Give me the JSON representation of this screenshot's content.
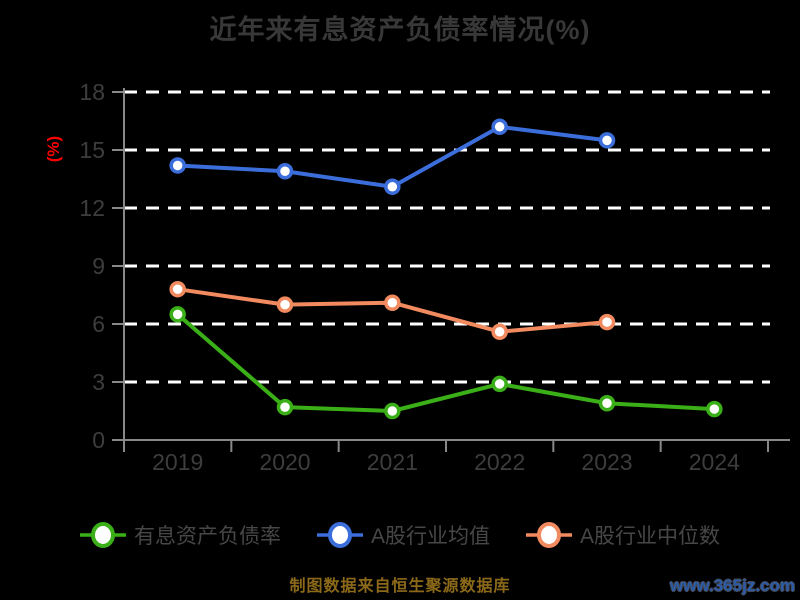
{
  "title": "近年来有息资产负债率情况(%)",
  "chart_data": {
    "type": "line",
    "categories": [
      "2019",
      "2020",
      "2021",
      "2022",
      "2023",
      "2024"
    ],
    "series": [
      {
        "name": "有息资产负债率",
        "color": "#3aaf17",
        "values": [
          6.5,
          1.7,
          1.5,
          2.9,
          1.9,
          1.6
        ]
      },
      {
        "name": "A股行业均值",
        "color": "#3c6edb",
        "values": [
          14.2,
          13.9,
          13.1,
          16.2,
          15.5,
          null
        ]
      },
      {
        "name": "A股行业中位数",
        "color": "#f18a5f",
        "values": [
          7.8,
          7.0,
          7.1,
          5.6,
          6.1,
          null
        ]
      }
    ],
    "ylabel": "(%)",
    "ylabel_color": "#ff0000",
    "ylim": [
      0,
      18
    ],
    "yticks": [
      0,
      3,
      6,
      9,
      12,
      15,
      18
    ],
    "grid": "horizontal-dashed",
    "gridline_color": "#ffffff",
    "axis_color": "#888888",
    "tick_label_color": "#3d3d3d",
    "marker_fill": "#ffffff",
    "legend_position": "bottom"
  },
  "footer": {
    "source_text": "制图数据来自恒生聚源数据库",
    "watermark": "www.365jz.com"
  }
}
